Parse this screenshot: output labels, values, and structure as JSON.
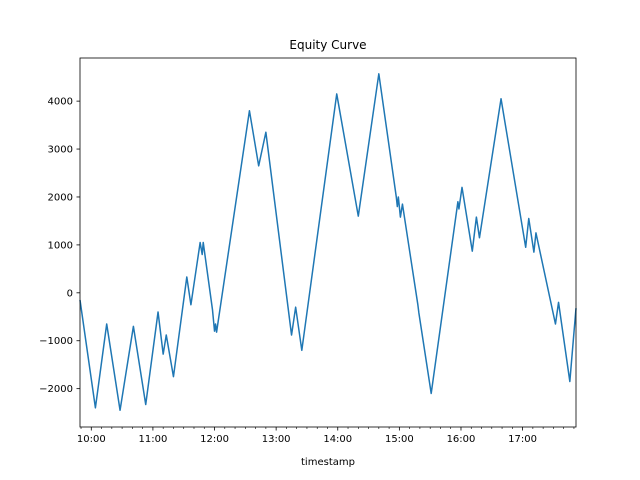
{
  "chart_data": {
    "type": "line",
    "title": "Equity Curve",
    "xlabel": "timestamp",
    "ylabel": "",
    "x_unit": "time (HH:MM)",
    "xlim": [
      "09:49",
      "17:52"
    ],
    "ylim": [
      -2800,
      4900
    ],
    "grid": false,
    "legend": "none",
    "x_ticks": [
      "10:00",
      "11:00",
      "12:00",
      "13:00",
      "14:00",
      "15:00",
      "16:00",
      "17:00"
    ],
    "y_ticks": [
      -2000,
      -1000,
      0,
      1000,
      2000,
      3000,
      4000
    ],
    "series": [
      {
        "name": "",
        "color": "#1f77b4",
        "points": [
          [
            "09:49",
            -150
          ],
          [
            "10:04",
            -2400
          ],
          [
            "10:15",
            -650
          ],
          [
            "10:28",
            -2450
          ],
          [
            "10:41",
            -700
          ],
          [
            "10:53",
            -2330
          ],
          [
            "11:05",
            -400
          ],
          [
            "11:10",
            -1280
          ],
          [
            "11:13",
            -880
          ],
          [
            "11:20",
            -1750
          ],
          [
            "11:33",
            330
          ],
          [
            "11:37",
            -250
          ],
          [
            "11:46",
            1050
          ],
          [
            "11:48",
            800
          ],
          [
            "11:49",
            1050
          ],
          [
            "11:58",
            -350
          ],
          [
            "12:00",
            -800
          ],
          [
            "12:01",
            -650
          ],
          [
            "12:02",
            -820
          ],
          [
            "12:34",
            3800
          ],
          [
            "12:43",
            2650
          ],
          [
            "12:50",
            3350
          ],
          [
            "13:15",
            -880
          ],
          [
            "13:19",
            -300
          ],
          [
            "13:25",
            -1200
          ],
          [
            "13:59",
            4150
          ],
          [
            "14:20",
            1600
          ],
          [
            "14:40",
            4570
          ],
          [
            "14:57",
            2000
          ],
          [
            "14:58",
            1800
          ],
          [
            "14:59",
            2000
          ],
          [
            "15:01",
            1580
          ],
          [
            "15:03",
            1850
          ],
          [
            "15:18",
            -250
          ],
          [
            "15:19",
            -420
          ],
          [
            "15:31",
            -2100
          ],
          [
            "15:57",
            1900
          ],
          [
            "15:58",
            1750
          ],
          [
            "16:01",
            2200
          ],
          [
            "16:11",
            870
          ],
          [
            "16:15",
            1580
          ],
          [
            "16:18",
            1150
          ],
          [
            "16:39",
            4050
          ],
          [
            "17:03",
            950
          ],
          [
            "17:06",
            1550
          ],
          [
            "17:11",
            850
          ],
          [
            "17:13",
            1250
          ],
          [
            "17:32",
            -650
          ],
          [
            "17:35",
            -200
          ],
          [
            "17:46",
            -1850
          ],
          [
            "17:52",
            -320
          ]
        ]
      }
    ]
  }
}
